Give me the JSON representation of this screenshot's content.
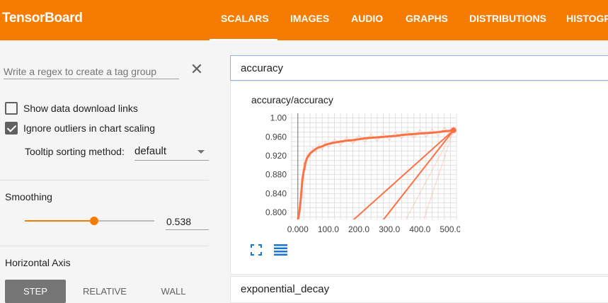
{
  "app": {
    "title": "TensorBoard"
  },
  "nav": {
    "tabs": [
      {
        "label": "SCALARS",
        "active": true
      },
      {
        "label": "IMAGES"
      },
      {
        "label": "AUDIO"
      },
      {
        "label": "GRAPHS"
      },
      {
        "label": "DISTRIBUTIONS"
      },
      {
        "label": "HISTOGR"
      }
    ]
  },
  "sidebar": {
    "regex_placeholder": "Write a regex to create a tag group",
    "regex_value": "",
    "show_download_label": "Show data download links",
    "show_download_checked": false,
    "ignore_outliers_label": "Ignore outliers in chart scaling",
    "ignore_outliers_checked": true,
    "tooltip_label": "Tooltip sorting method:",
    "tooltip_value": "default",
    "smoothing_title": "Smoothing",
    "smoothing_value": "0.538",
    "smoothing_fraction": 0.538,
    "horizontal_axis_title": "Horizontal Axis",
    "axis_options": [
      "STEP",
      "RELATIVE",
      "WALL"
    ],
    "axis_selected": "STEP"
  },
  "main": {
    "tag_filter_value": "accuracy",
    "card_title": "accuracy/accuracy",
    "second_card_title": "exponential_decay"
  },
  "colors": {
    "accent": "#f57c00",
    "series_color": "#ff7043"
  },
  "chart_data": {
    "type": "line",
    "title": "accuracy/accuracy",
    "xlabel": "",
    "ylabel": "",
    "x_ticks": [
      "0.000",
      "100.0",
      "200.0",
      "300.0",
      "400.0",
      "500.0"
    ],
    "y_ticks": [
      "0.800",
      "0.840",
      "0.880",
      "0.920",
      "0.960",
      "1.00"
    ],
    "xlim": [
      -25,
      520
    ],
    "ylim": [
      0.785,
      1.01
    ],
    "grid": true,
    "series": [
      {
        "x": [
          0,
          5,
          10,
          15,
          20,
          25,
          30,
          40,
          50,
          60,
          70,
          80,
          90,
          100,
          120,
          140,
          160,
          180,
          200,
          220,
          240,
          260,
          280,
          300,
          320,
          340,
          360,
          380,
          400,
          420,
          440,
          460,
          480,
          500,
          510
        ],
        "y": [
          0.785,
          0.8,
          0.83,
          0.87,
          0.89,
          0.905,
          0.915,
          0.925,
          0.93,
          0.935,
          0.938,
          0.94,
          0.943,
          0.945,
          0.948,
          0.95,
          0.952,
          0.953,
          0.955,
          0.957,
          0.958,
          0.959,
          0.96,
          0.961,
          0.962,
          0.964,
          0.965,
          0.966,
          0.967,
          0.968,
          0.969,
          0.97,
          0.972,
          0.973,
          0.974
        ]
      }
    ]
  }
}
